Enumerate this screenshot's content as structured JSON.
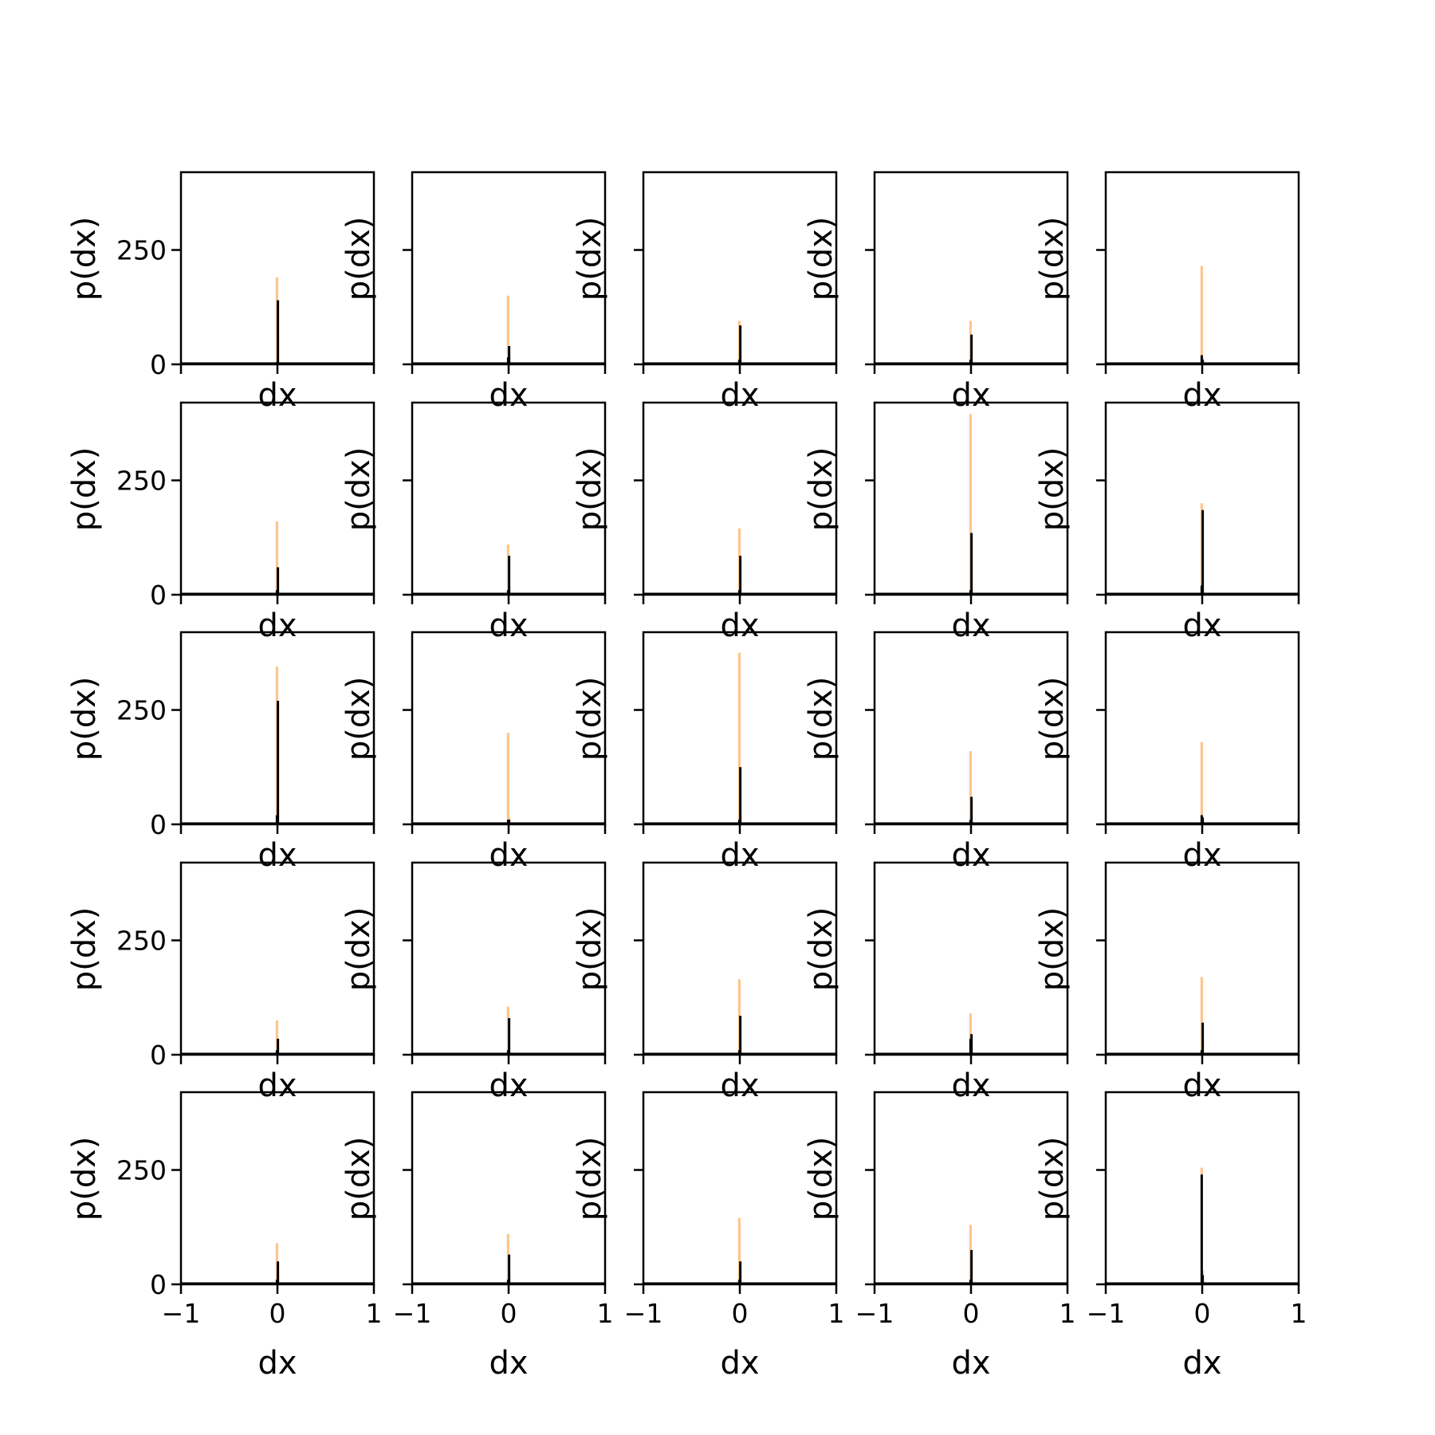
{
  "chart_data": {
    "type": "bar",
    "layout": "grid of 5 rows x 5 columns of histograms",
    "xlabel": "dx",
    "ylabel": "p(dx)",
    "xlim": [
      -1,
      1
    ],
    "ylim": [
      0,
      420
    ],
    "xticks": [
      -1,
      0,
      1
    ],
    "xtick_labels": [
      "−1",
      "0",
      "1"
    ],
    "yticks": [
      0,
      250
    ],
    "ytick_labels": [
      "0",
      "250"
    ],
    "colors": {
      "orange": "#ffbb78",
      "blue": "#9ab6cf",
      "black": "#000000",
      "axes": "#000000"
    },
    "series_roles": [
      "orange",
      "blue",
      "black"
    ],
    "bin_width": 0.01,
    "panels": [
      {
        "bars": [
          {
            "x": -0.005,
            "o": 190,
            "b": 5,
            "k": 10
          },
          {
            "x": 0.005,
            "o": 60,
            "b": 140,
            "k": 70
          }
        ]
      },
      {
        "bars": [
          {
            "x": -0.005,
            "o": 150,
            "b": 15,
            "k": 65
          },
          {
            "x": 0.005,
            "o": 25,
            "b": 40,
            "k": 20
          }
        ]
      },
      {
        "bars": [
          {
            "x": -0.005,
            "o": 95,
            "b": 10,
            "k": 45
          },
          {
            "x": 0.005,
            "o": 20,
            "b": 85,
            "k": 35
          }
        ]
      },
      {
        "bars": [
          {
            "x": -0.005,
            "o": 95,
            "b": 10,
            "k": 30
          },
          {
            "x": 0.005,
            "o": 20,
            "b": 65,
            "k": 25
          }
        ]
      },
      {
        "bars": [
          {
            "x": -0.005,
            "o": 215,
            "b": 20,
            "k": 90
          },
          {
            "x": 0.005,
            "o": 15,
            "b": 10,
            "k": 30
          }
        ]
      },
      {
        "bars": [
          {
            "x": -0.005,
            "o": 160,
            "b": 10,
            "k": 60
          },
          {
            "x": 0.005,
            "o": 25,
            "b": 60,
            "k": 20
          }
        ]
      },
      {
        "bars": [
          {
            "x": -0.005,
            "o": 110,
            "b": 10,
            "k": 55
          },
          {
            "x": 0.005,
            "o": 20,
            "b": 85,
            "k": 35
          }
        ]
      },
      {
        "bars": [
          {
            "x": -0.005,
            "o": 145,
            "b": 10,
            "k": 60
          },
          {
            "x": 0.005,
            "o": 20,
            "b": 85,
            "k": 30
          }
        ]
      },
      {
        "bars": [
          {
            "x": -0.005,
            "o": 395,
            "b": 10,
            "k": 105
          },
          {
            "x": 0.005,
            "o": 20,
            "b": 135,
            "k": 50
          }
        ]
      },
      {
        "bars": [
          {
            "x": -0.005,
            "o": 200,
            "b": 20,
            "k": 60
          },
          {
            "x": 0.005,
            "o": 15,
            "b": 185,
            "k": 105
          }
        ]
      },
      {
        "bars": [
          {
            "x": -0.005,
            "o": 345,
            "b": 20,
            "k": 140
          },
          {
            "x": 0.005,
            "o": 20,
            "b": 270,
            "k": 60
          }
        ]
      },
      {
        "bars": [
          {
            "x": -0.005,
            "o": 200,
            "b": 10,
            "k": 115
          },
          {
            "x": 0.005,
            "o": 15,
            "b": 10,
            "k": 40
          }
        ]
      },
      {
        "bars": [
          {
            "x": -0.005,
            "o": 375,
            "b": 10,
            "k": 140
          },
          {
            "x": 0.005,
            "o": 15,
            "b": 125,
            "k": 60
          }
        ]
      },
      {
        "bars": [
          {
            "x": -0.005,
            "o": 160,
            "b": 10,
            "k": 65
          },
          {
            "x": 0.005,
            "o": 15,
            "b": 60,
            "k": 25
          }
        ]
      },
      {
        "bars": [
          {
            "x": -0.005,
            "o": 180,
            "b": 20,
            "k": 90
          },
          {
            "x": 0.005,
            "o": 10,
            "b": 15,
            "k": 10
          }
        ]
      },
      {
        "bars": [
          {
            "x": -0.005,
            "o": 75,
            "b": 10,
            "k": 35
          },
          {
            "x": 0.005,
            "o": 20,
            "b": 35,
            "k": 30
          }
        ]
      },
      {
        "bars": [
          {
            "x": -0.005,
            "o": 105,
            "b": 10,
            "k": 45
          },
          {
            "x": 0.005,
            "o": 20,
            "b": 80,
            "k": 30
          }
        ]
      },
      {
        "bars": [
          {
            "x": -0.005,
            "o": 165,
            "b": 10,
            "k": 80
          },
          {
            "x": 0.005,
            "o": 20,
            "b": 85,
            "k": 35
          }
        ]
      },
      {
        "bars": [
          {
            "x": -0.005,
            "o": 90,
            "b": 35,
            "k": 20
          },
          {
            "x": 0.005,
            "o": 20,
            "b": 45,
            "k": 40
          }
        ]
      },
      {
        "bars": [
          {
            "x": -0.005,
            "o": 170,
            "b": 10,
            "k": 75
          },
          {
            "x": 0.005,
            "o": 20,
            "b": 70,
            "k": 25
          }
        ]
      },
      {
        "bars": [
          {
            "x": -0.005,
            "o": 90,
            "b": 10,
            "k": 30
          },
          {
            "x": 0.005,
            "o": 20,
            "b": 50,
            "k": 50
          }
        ]
      },
      {
        "bars": [
          {
            "x": -0.005,
            "o": 110,
            "b": 10,
            "k": 40
          },
          {
            "x": 0.005,
            "o": 20,
            "b": 65,
            "k": 25
          }
        ]
      },
      {
        "bars": [
          {
            "x": -0.005,
            "o": 145,
            "b": 10,
            "k": 65
          },
          {
            "x": 0.005,
            "o": 20,
            "b": 50,
            "k": 25
          }
        ]
      },
      {
        "bars": [
          {
            "x": -0.005,
            "o": 130,
            "b": 10,
            "k": 80
          },
          {
            "x": 0.005,
            "o": 20,
            "b": 75,
            "k": 40
          }
        ]
      },
      {
        "bars": [
          {
            "x": -0.005,
            "o": 255,
            "b": 240,
            "k": 65
          },
          {
            "x": 0.005,
            "o": 30,
            "b": 20,
            "k": 20
          }
        ]
      }
    ]
  }
}
